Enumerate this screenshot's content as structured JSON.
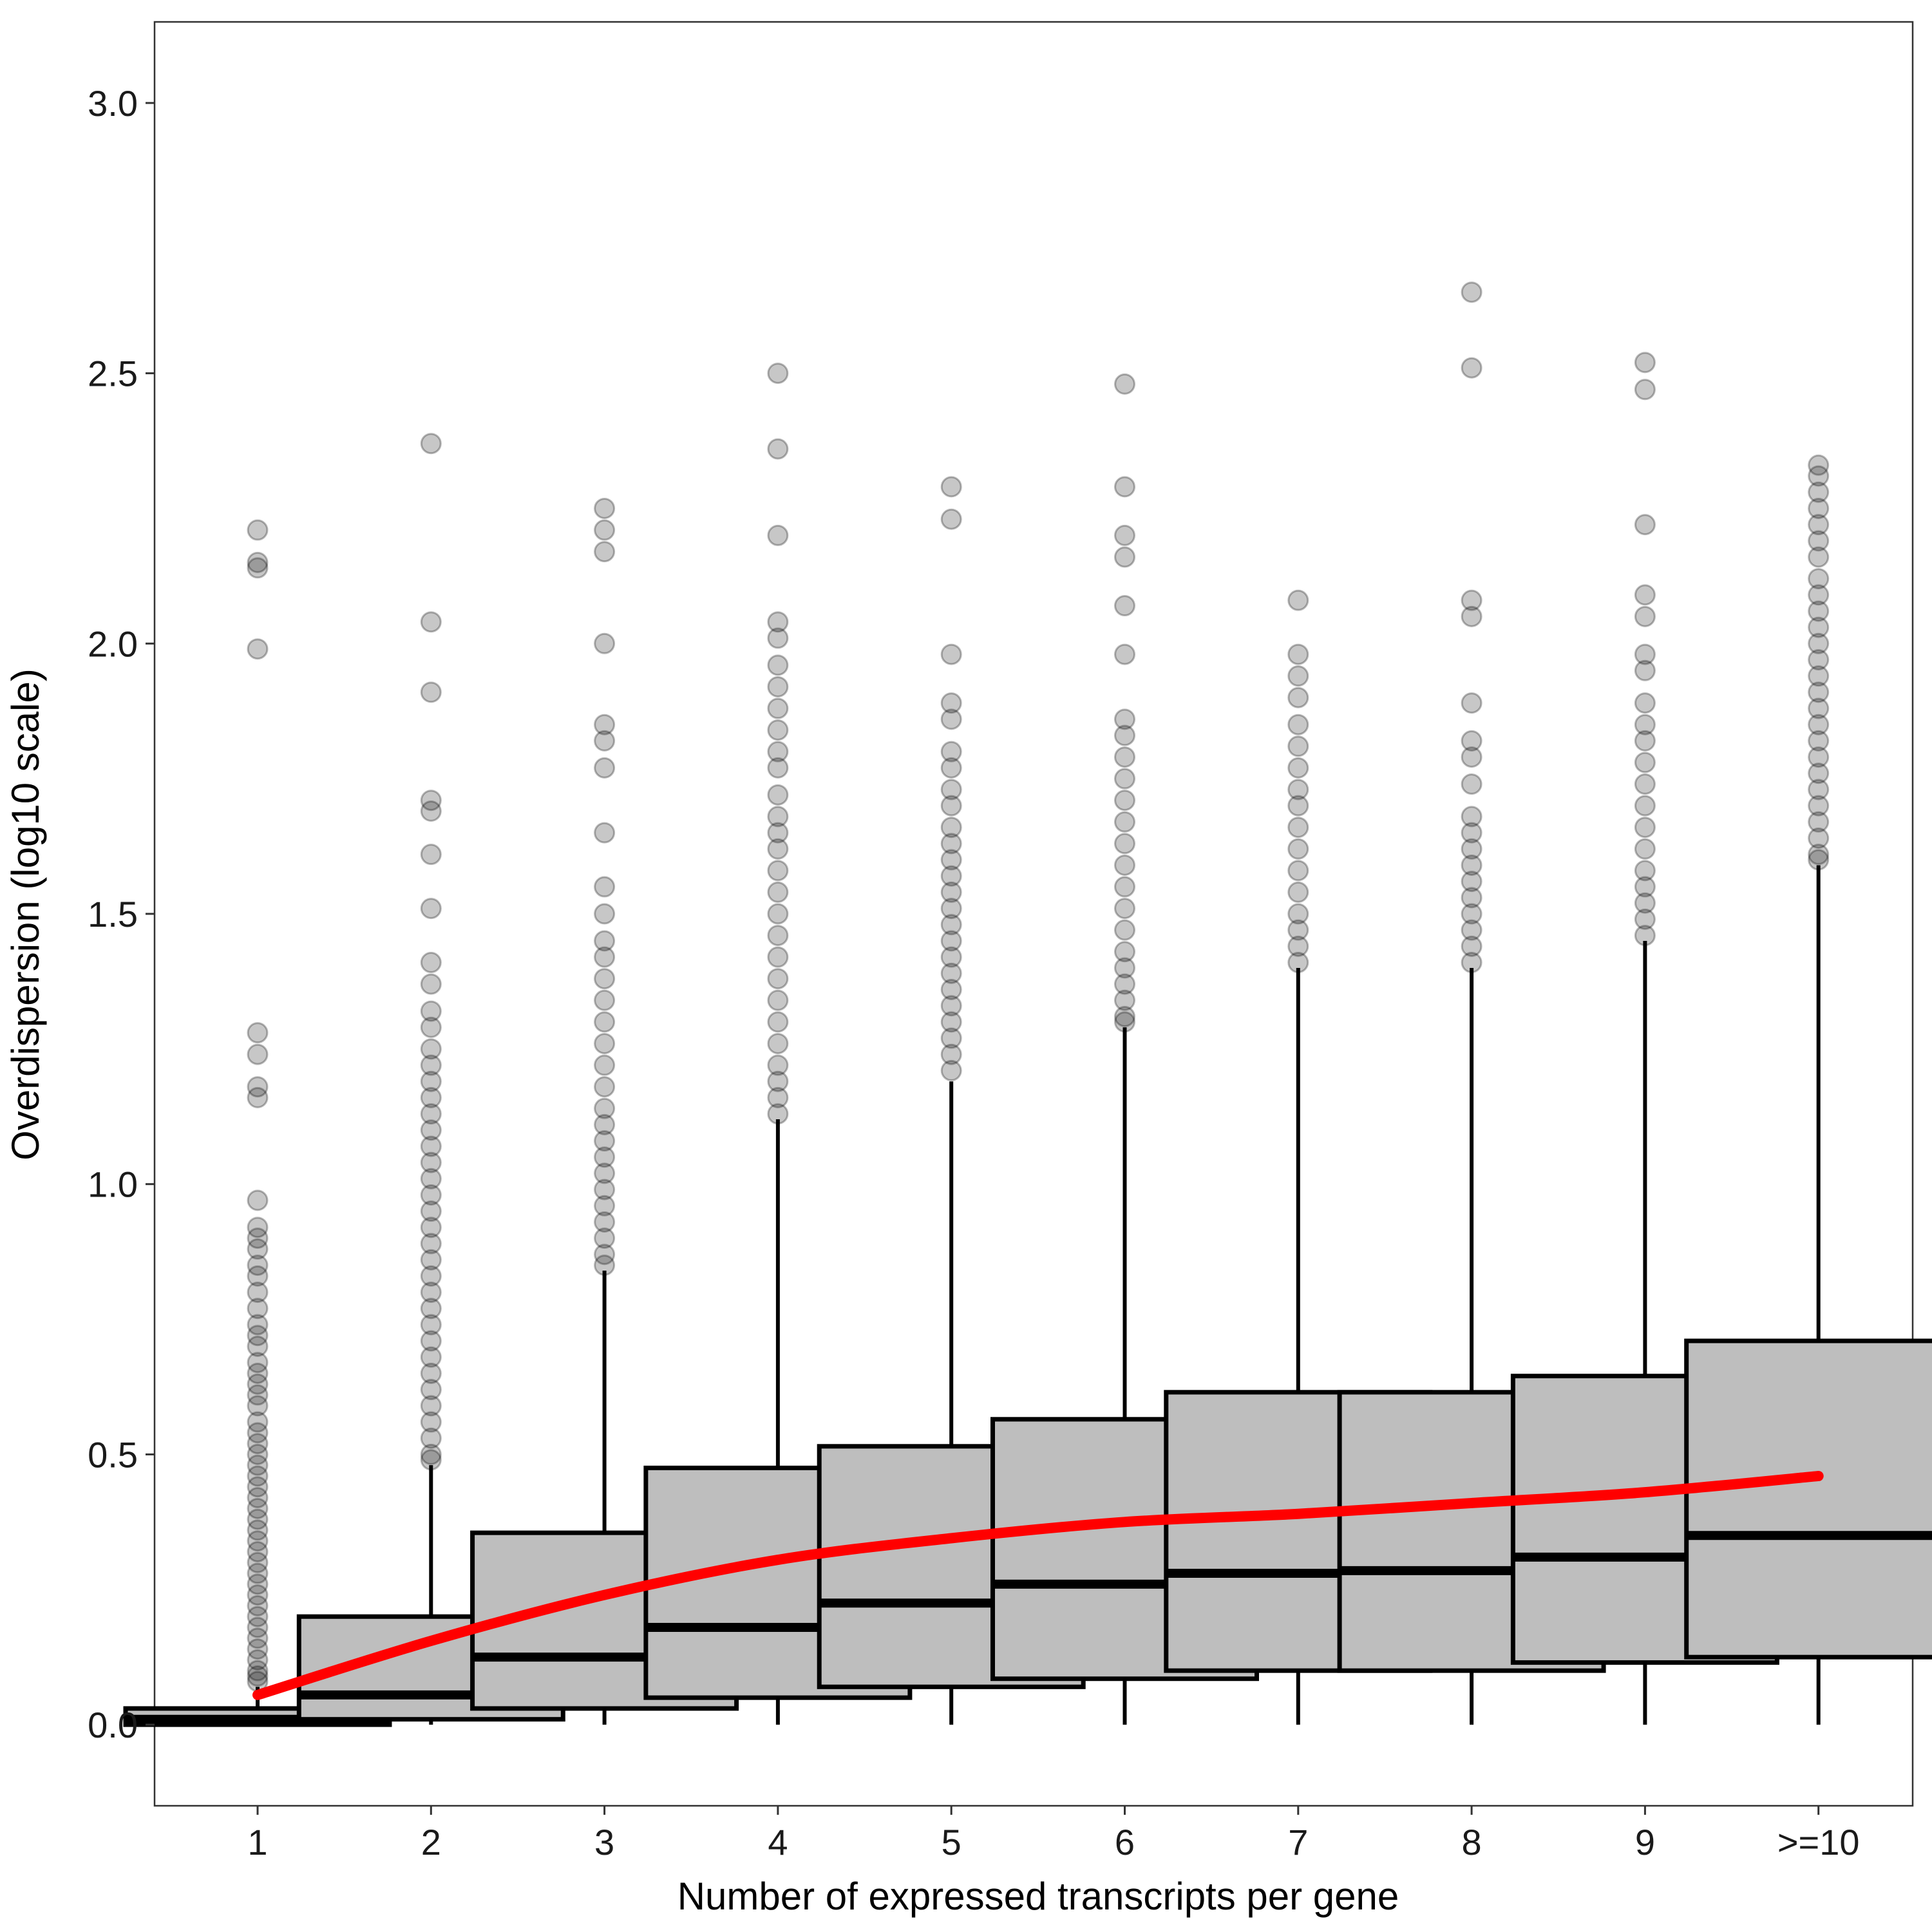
{
  "chart_data": {
    "type": "boxplot",
    "title": "",
    "xlabel": "Number of expressed transcripts per gene",
    "ylabel": "Overdispersion (log10 scale)",
    "ylim": [
      -0.15,
      3.15
    ],
    "yticks": [
      {
        "value": 0.0,
        "label": "0.0"
      },
      {
        "value": 0.5,
        "label": "0.5"
      },
      {
        "value": 1.0,
        "label": "1.0"
      },
      {
        "value": 1.5,
        "label": "1.5"
      },
      {
        "value": 2.0,
        "label": "2.0"
      },
      {
        "value": 2.5,
        "label": "2.5"
      },
      {
        "value": 3.0,
        "label": "3.0"
      }
    ],
    "categories": [
      "1",
      "2",
      "3",
      "4",
      "5",
      "6",
      "7",
      "8",
      "9",
      ">=10"
    ],
    "boxes": [
      {
        "q1": 0.0,
        "median": 0.01,
        "q3": 0.03,
        "whisker_low": 0.0,
        "whisker_high": 0.07,
        "outliers": [
          2.21,
          2.15,
          2.14,
          1.99,
          1.28,
          1.24,
          1.18,
          1.16,
          0.97,
          0.92,
          0.9,
          0.88,
          0.85,
          0.83,
          0.8,
          0.77,
          0.74,
          0.72,
          0.7,
          0.67,
          0.65,
          0.63,
          0.61,
          0.59,
          0.56,
          0.54,
          0.52,
          0.5,
          0.48,
          0.46,
          0.44,
          0.42,
          0.4,
          0.38,
          0.36,
          0.34,
          0.32,
          0.3,
          0.28,
          0.26,
          0.24,
          0.22,
          0.2,
          0.18,
          0.16,
          0.14,
          0.12,
          0.1,
          0.09,
          0.08
        ]
      },
      {
        "q1": 0.01,
        "median": 0.055,
        "q3": 0.2,
        "whisker_low": 0.0,
        "whisker_high": 0.48,
        "outliers": [
          2.37,
          2.04,
          1.91,
          1.71,
          1.69,
          1.61,
          1.51,
          1.41,
          1.37,
          1.32,
          1.29,
          1.25,
          1.22,
          1.19,
          1.16,
          1.13,
          1.1,
          1.07,
          1.04,
          1.01,
          0.98,
          0.95,
          0.92,
          0.89,
          0.86,
          0.83,
          0.8,
          0.77,
          0.74,
          0.71,
          0.68,
          0.65,
          0.62,
          0.59,
          0.56,
          0.53,
          0.5,
          0.49
        ]
      },
      {
        "q1": 0.03,
        "median": 0.125,
        "q3": 0.355,
        "whisker_low": 0.0,
        "whisker_high": 0.84,
        "outliers": [
          2.25,
          2.21,
          2.17,
          2.0,
          1.85,
          1.82,
          1.77,
          1.65,
          1.55,
          1.5,
          1.45,
          1.42,
          1.38,
          1.34,
          1.3,
          1.26,
          1.22,
          1.18,
          1.14,
          1.11,
          1.08,
          1.05,
          1.02,
          0.99,
          0.96,
          0.93,
          0.9,
          0.87,
          0.85
        ]
      },
      {
        "q1": 0.05,
        "median": 0.18,
        "q3": 0.475,
        "whisker_low": 0.0,
        "whisker_high": 1.12,
        "outliers": [
          2.5,
          2.36,
          2.2,
          2.04,
          2.01,
          1.96,
          1.92,
          1.88,
          1.84,
          1.8,
          1.77,
          1.72,
          1.68,
          1.65,
          1.62,
          1.58,
          1.54,
          1.5,
          1.46,
          1.42,
          1.38,
          1.34,
          1.3,
          1.26,
          1.22,
          1.19,
          1.16,
          1.13
        ]
      },
      {
        "q1": 0.07,
        "median": 0.225,
        "q3": 0.515,
        "whisker_low": 0.0,
        "whisker_high": 1.19,
        "outliers": [
          2.29,
          2.23,
          1.98,
          1.89,
          1.86,
          1.8,
          1.77,
          1.73,
          1.7,
          1.66,
          1.63,
          1.6,
          1.57,
          1.54,
          1.51,
          1.48,
          1.45,
          1.42,
          1.39,
          1.36,
          1.33,
          1.3,
          1.27,
          1.24,
          1.21
        ]
      },
      {
        "q1": 0.085,
        "median": 0.26,
        "q3": 0.565,
        "whisker_low": 0.0,
        "whisker_high": 1.29,
        "outliers": [
          2.48,
          2.29,
          2.2,
          2.16,
          2.07,
          1.98,
          1.86,
          1.83,
          1.79,
          1.75,
          1.71,
          1.67,
          1.63,
          1.59,
          1.55,
          1.51,
          1.47,
          1.43,
          1.4,
          1.37,
          1.34,
          1.31,
          1.3
        ]
      },
      {
        "q1": 0.1,
        "median": 0.28,
        "q3": 0.615,
        "whisker_low": 0.0,
        "whisker_high": 1.4,
        "outliers": [
          2.08,
          1.98,
          1.94,
          1.9,
          1.85,
          1.81,
          1.77,
          1.73,
          1.7,
          1.66,
          1.62,
          1.58,
          1.54,
          1.5,
          1.47,
          1.44,
          1.41
        ]
      },
      {
        "q1": 0.1,
        "median": 0.285,
        "q3": 0.615,
        "whisker_low": 0.0,
        "whisker_high": 1.4,
        "outliers": [
          2.65,
          2.51,
          2.08,
          2.05,
          1.89,
          1.82,
          1.79,
          1.74,
          1.68,
          1.65,
          1.62,
          1.59,
          1.56,
          1.53,
          1.5,
          1.47,
          1.44,
          1.41
        ]
      },
      {
        "q1": 0.115,
        "median": 0.31,
        "q3": 0.645,
        "whisker_low": 0.0,
        "whisker_high": 1.45,
        "outliers": [
          2.52,
          2.47,
          2.22,
          2.09,
          2.05,
          1.98,
          1.95,
          1.89,
          1.85,
          1.82,
          1.78,
          1.74,
          1.7,
          1.66,
          1.62,
          1.58,
          1.55,
          1.52,
          1.49,
          1.46
        ]
      },
      {
        "q1": 0.125,
        "median": 0.35,
        "q3": 0.71,
        "whisker_low": 0.0,
        "whisker_high": 1.59,
        "outliers": [
          2.33,
          2.31,
          2.28,
          2.25,
          2.22,
          2.19,
          2.16,
          2.12,
          2.09,
          2.06,
          2.03,
          2.0,
          1.97,
          1.94,
          1.91,
          1.88,
          1.85,
          1.82,
          1.79,
          1.76,
          1.73,
          1.7,
          1.67,
          1.64,
          1.61,
          1.6
        ]
      }
    ],
    "trend_line": {
      "color": "#ff0000",
      "x": [
        "1",
        "2",
        "3",
        "4",
        "5",
        "6",
        "7",
        "8",
        "9",
        ">=10"
      ],
      "y": [
        0.055,
        0.155,
        0.24,
        0.305,
        0.345,
        0.375,
        0.39,
        0.41,
        0.43,
        0.46
      ]
    },
    "colors": {
      "box_fill": "#bebebe",
      "box_stroke": "#000000",
      "outlier": "#000000",
      "trend": "#ff0000"
    },
    "grid": false
  }
}
